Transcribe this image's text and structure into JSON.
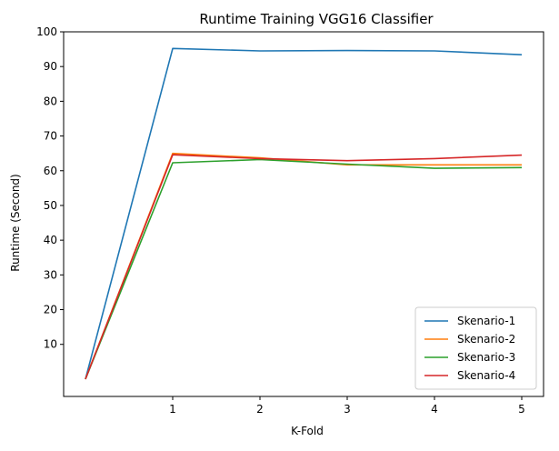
{
  "chart_data": {
    "type": "line",
    "title": "Runtime Training VGG16 Classifier",
    "xlabel": "K-Fold",
    "ylabel": "Runtime (Second)",
    "x": [
      0,
      1,
      2,
      3,
      4,
      5
    ],
    "x_ticks": [
      1,
      2,
      3,
      4,
      5
    ],
    "y_ticks": [
      10,
      20,
      30,
      40,
      50,
      60,
      70,
      80,
      90,
      100
    ],
    "xlim": [
      -0.25,
      5.25
    ],
    "ylim": [
      -5,
      100
    ],
    "grid": false,
    "legend_position": "lower right",
    "series": [
      {
        "name": "Skenario-1",
        "color": "#1f77b4",
        "values": [
          0,
          95.2,
          94.5,
          94.6,
          94.5,
          93.4
        ]
      },
      {
        "name": "Skenario-2",
        "color": "#ff7f0e",
        "values": [
          0,
          65.0,
          63.7,
          61.7,
          61.7,
          61.7
        ]
      },
      {
        "name": "Skenario-3",
        "color": "#2ca02c",
        "values": [
          0,
          62.3,
          63.2,
          61.9,
          60.7,
          60.9
        ]
      },
      {
        "name": "Skenario-4",
        "color": "#d62728",
        "values": [
          0,
          64.6,
          63.5,
          62.9,
          63.5,
          64.5
        ]
      }
    ]
  }
}
